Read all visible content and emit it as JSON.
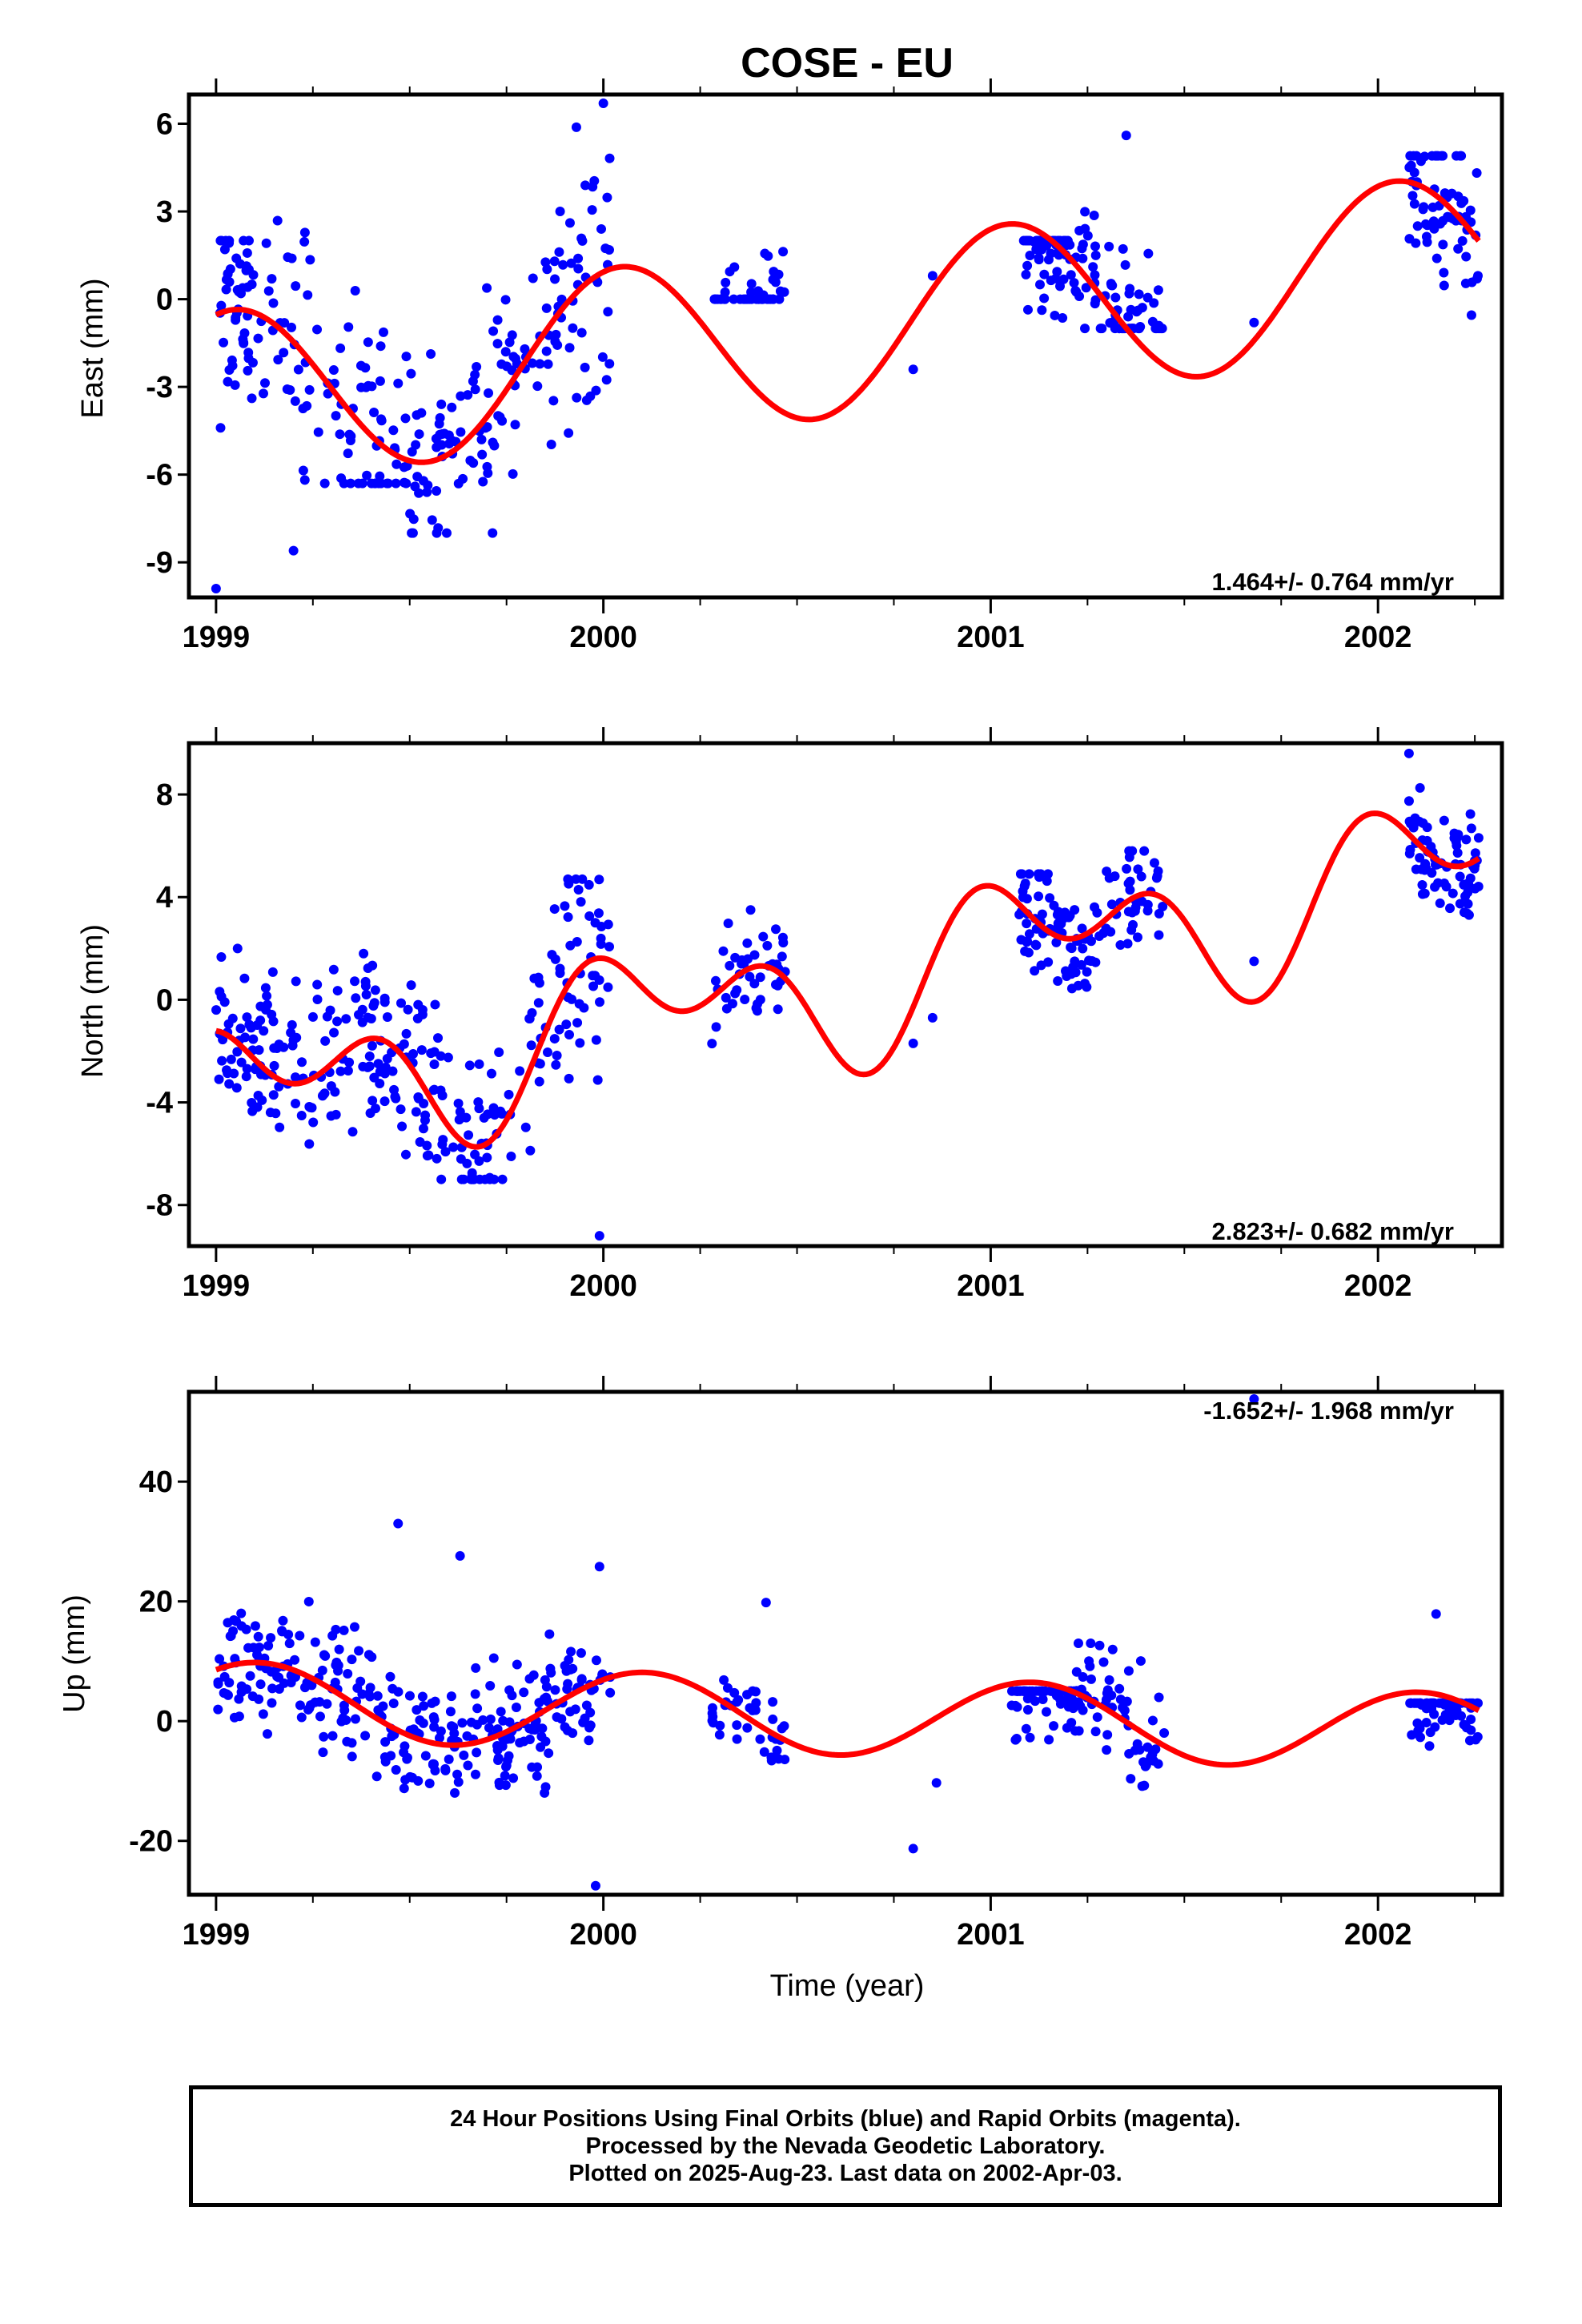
{
  "title": "COSE - EU",
  "xlabel": "Time (year)",
  "caption": [
    "24 Hour Positions Using Final Orbits (blue) and Rapid Orbits (magenta).",
    "Processed by the Nevada Geodetic Laboratory.",
    "Plotted on 2025-Aug-23. Last data on 2002-Apr-03."
  ],
  "colors": {
    "points": "#0000ff",
    "fit": "#ff0000",
    "frame": "#000000"
  },
  "chart_data": [
    {
      "type": "scatter",
      "ylabel": "East (mm)",
      "rate_text": "1.464+/- 0.764 mm/yr",
      "xlim": [
        1998.93,
        2002.32
      ],
      "ylim": [
        -10.2,
        7.0
      ],
      "x_ticks": [
        "1999",
        "2000",
        "2001",
        "2002"
      ],
      "y_ticks": [
        "6",
        "3",
        "0",
        "-3",
        "-6",
        "-9"
      ],
      "y_tick_values": [
        6,
        3,
        0,
        -3,
        -6,
        -9
      ],
      "fit_model": {
        "offset": -1.2,
        "trend": 1.464,
        "t0": 2000.5,
        "annual": [
          0.97,
          2.25
        ],
        "semiannual": [
          0.0,
          0.0
        ]
      },
      "clusters": [
        {
          "x": [
            1999.0,
            1999.12
          ],
          "n": 52,
          "fill": [
            -8.5,
            2.0
          ]
        },
        {
          "x": [
            1999.12,
            1999.5
          ],
          "n": 90,
          "fill": [
            -6.3,
            6.2
          ]
        },
        {
          "x": [
            1999.5,
            1999.9
          ],
          "n": 110,
          "fill": [
            -8.0,
            3.0
          ]
        },
        {
          "x": [
            1999.9,
            2000.02
          ],
          "n": 35,
          "fill": [
            -8.0,
            6.7
          ]
        },
        {
          "x": [
            2000.28,
            2000.47
          ],
          "n": 45,
          "fill": [
            0.0,
            5.1
          ]
        },
        {
          "x": [
            2001.08,
            2001.2
          ],
          "n": 60,
          "fill": [
            -4.5,
            2.0
          ]
        },
        {
          "x": [
            2001.2,
            2001.45
          ],
          "n": 75,
          "fill": [
            -1.0,
            5.6
          ]
        },
        {
          "x": [
            2002.07,
            2002.26
          ],
          "n": 70,
          "fill": [
            -3.0,
            4.9
          ]
        }
      ],
      "points_extra": [
        [
          1999.0,
          -9.9
        ],
        [
          2000.0,
          6.7
        ],
        [
          2000.85,
          0.8
        ],
        [
          2000.8,
          -2.4
        ],
        [
          2001.68,
          -0.8
        ],
        [
          2001.35,
          5.6
        ],
        [
          1999.2,
          -8.6
        ]
      ]
    },
    {
      "type": "scatter",
      "ylabel": "North (mm)",
      "rate_text": "2.823+/- 0.682 mm/yr",
      "xlim": [
        1998.93,
        2002.32
      ],
      "ylim": [
        -9.6,
        10.0
      ],
      "x_ticks": [
        "1999",
        "2000",
        "2001",
        "2002"
      ],
      "y_ticks": [
        "8",
        "4",
        "0",
        "-4",
        "-8"
      ],
      "y_tick_values": [
        8,
        4,
        0,
        -4,
        -8
      ],
      "fit_model": {
        "offset": 0.3,
        "trend": 2.823,
        "t0": 2000.5,
        "annual": [
          0.98,
          0.6
        ],
        "semiannual": [
          0.3,
          1.75
        ]
      },
      "clusters": [
        {
          "x": [
            1999.0,
            1999.12
          ],
          "n": 45,
          "fill": [
            -7.0,
            2.0
          ]
        },
        {
          "x": [
            1999.12,
            1999.45
          ],
          "n": 100,
          "fill": [
            -9.0,
            1.8
          ]
        },
        {
          "x": [
            1999.45,
            1999.9
          ],
          "n": 120,
          "fill": [
            -7.0,
            4.8
          ]
        },
        {
          "x": [
            1999.9,
            2000.02
          ],
          "n": 40,
          "fill": [
            -9.2,
            4.7
          ]
        },
        {
          "x": [
            2000.28,
            2000.47
          ],
          "n": 45,
          "fill": [
            -2.8,
            3.5
          ]
        },
        {
          "x": [
            2001.07,
            2001.22
          ],
          "n": 60,
          "fill": [
            -3.0,
            4.9
          ]
        },
        {
          "x": [
            2001.22,
            2001.45
          ],
          "n": 60,
          "fill": [
            0.0,
            5.8
          ]
        },
        {
          "x": [
            2002.08,
            2002.26
          ],
          "n": 75,
          "fill": [
            3.3,
            9.6
          ]
        }
      ],
      "points_extra": [
        [
          2000.8,
          -1.7
        ],
        [
          2000.85,
          -0.7
        ],
        [
          2001.68,
          1.5
        ],
        [
          1999.99,
          -9.2
        ],
        [
          2002.08,
          9.6
        ]
      ]
    },
    {
      "type": "scatter",
      "ylabel": "Up (mm)",
      "rate_text": "-1.652+/- 1.968 mm/yr",
      "xlim": [
        1998.93,
        2002.32
      ],
      "ylim": [
        -29.0,
        55.0
      ],
      "x_ticks": [
        "1999",
        "2000",
        "2001",
        "2002"
      ],
      "y_ticks": [
        "40",
        "20",
        "0",
        "-20"
      ],
      "y_tick_values": [
        40,
        20,
        0,
        -20
      ],
      "fit_model": {
        "offset": 1.0,
        "trend": -1.652,
        "t0": 2000.5,
        "annual": [
          2.9,
          2.9
        ],
        "semiannual": [
          0.0,
          0.0
        ]
      },
      "clusters": [
        {
          "x": [
            1999.0,
            1999.15
          ],
          "n": 50,
          "fill": [
            -15.0,
            18.0
          ]
        },
        {
          "x": [
            1999.15,
            1999.55
          ],
          "n": 110,
          "fill": [
            -15.0,
            20.0
          ]
        },
        {
          "x": [
            1999.55,
            1999.9
          ],
          "n": 110,
          "fill": [
            -12.0,
            21.0
          ]
        },
        {
          "x": [
            1999.9,
            2000.02
          ],
          "n": 35,
          "fill": [
            -15.0,
            14.0
          ]
        },
        {
          "x": [
            2000.28,
            2000.47
          ],
          "n": 40,
          "fill": [
            -9.0,
            11.0
          ]
        },
        {
          "x": [
            2001.05,
            2001.22
          ],
          "n": 70,
          "fill": [
            -17.0,
            5.0
          ]
        },
        {
          "x": [
            2001.22,
            2001.45
          ],
          "n": 60,
          "fill": [
            -17.0,
            13.0
          ]
        },
        {
          "x": [
            2002.08,
            2002.26
          ],
          "n": 75,
          "fill": [
            -17.0,
            3.0
          ]
        }
      ],
      "points_extra": [
        [
          1999.47,
          33.0
        ],
        [
          1999.63,
          27.6
        ],
        [
          1999.99,
          25.8
        ],
        [
          2000.8,
          -21.3
        ],
        [
          2000.86,
          -10.3
        ],
        [
          1999.98,
          -27.5
        ],
        [
          2001.68,
          53.8
        ],
        [
          2002.15,
          17.9
        ],
        [
          2000.42,
          19.8
        ]
      ]
    }
  ]
}
